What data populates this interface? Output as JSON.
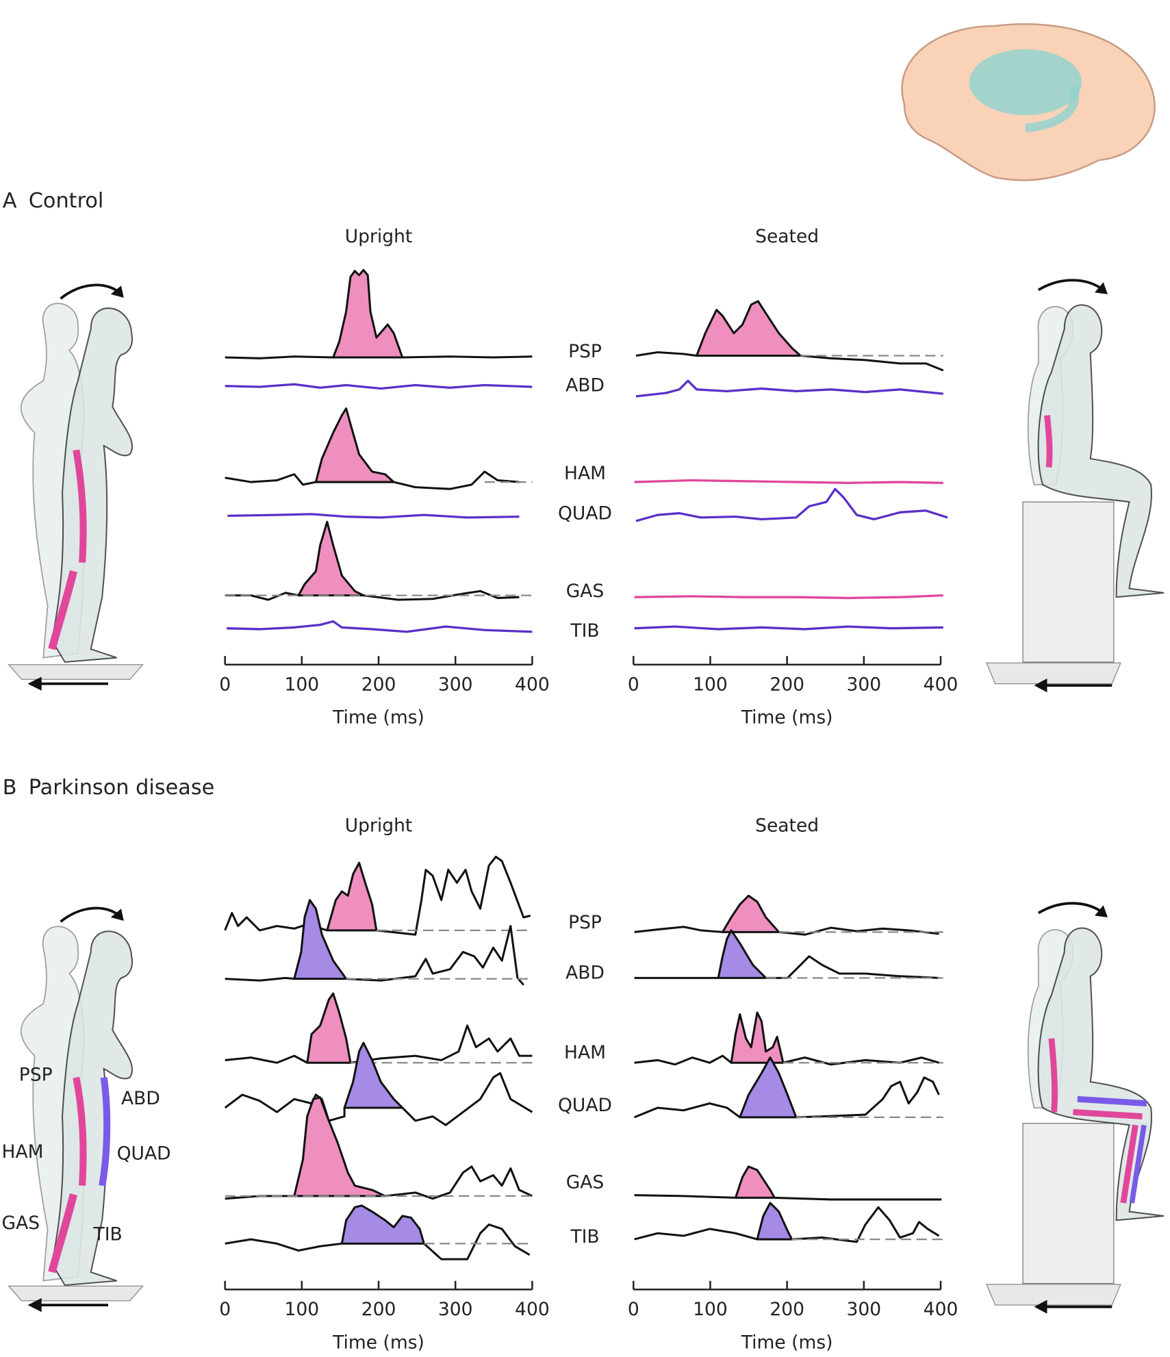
{
  "panels": [
    {
      "label": "A",
      "title": "Control",
      "plots": [
        {
          "title": "Upright",
          "xticks": [
            0,
            100,
            200,
            300,
            400
          ],
          "xlabel": "Time (ms)"
        },
        {
          "title": "Seated",
          "xticks": [
            0,
            100,
            200,
            300,
            400
          ],
          "xlabel": "Time (ms)"
        }
      ],
      "muscles": [
        "PSP",
        "ABD",
        "HAM",
        "QUAD",
        "GAS",
        "TIB"
      ]
    },
    {
      "label": "B",
      "title": "Parkinson disease",
      "plots": [
        {
          "title": "Upright",
          "xticks": [
            0,
            100,
            200,
            300,
            400
          ],
          "xlabel": "Time (ms)"
        },
        {
          "title": "Seated",
          "xticks": [
            0,
            100,
            200,
            300,
            400
          ],
          "xlabel": "Time (ms)"
        }
      ],
      "muscles": [
        "PSP",
        "ABD",
        "HAM",
        "QUAD",
        "GAS",
        "TIB"
      ],
      "figure_labels": [
        "PSP",
        "ABD",
        "HAM",
        "QUAD",
        "GAS",
        "TIB"
      ]
    }
  ]
}
